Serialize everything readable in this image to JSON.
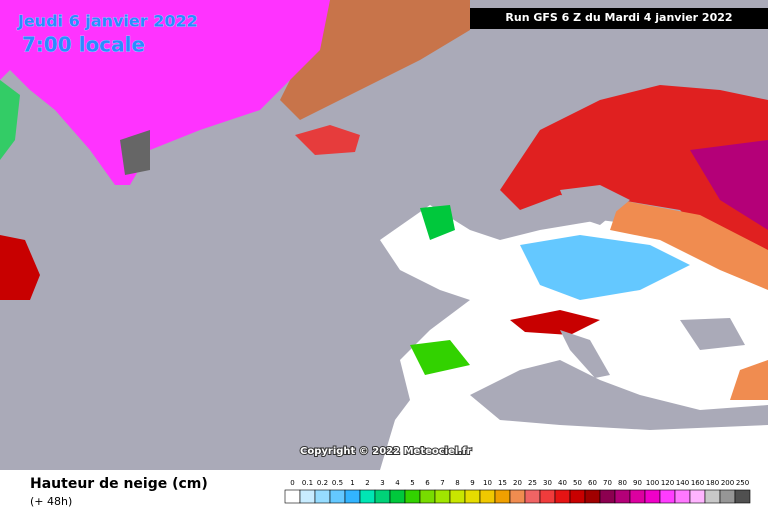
{
  "header": {
    "date": "Jeudi 6 janvier 2022",
    "time": "7:00 locale",
    "run": "Run GFS 6 Z du Mardi 4 janvier 2022"
  },
  "copyright": "Copyright © 2022 Meteociel.fr",
  "legend": {
    "title": "Hauteur de neige (cm)",
    "subtitle": "(+ 48h)",
    "items": [
      {
        "label": "0",
        "color": "#ffffff"
      },
      {
        "label": "0.1",
        "color": "#c8ecff"
      },
      {
        "label": "0.2",
        "color": "#96dcff"
      },
      {
        "label": "0.5",
        "color": "#64c8ff"
      },
      {
        "label": "1",
        "color": "#32b4ff"
      },
      {
        "label": "2",
        "color": "#00e6b4"
      },
      {
        "label": "3",
        "color": "#00d278"
      },
      {
        "label": "4",
        "color": "#00c83c"
      },
      {
        "label": "5",
        "color": "#32d200"
      },
      {
        "label": "6",
        "color": "#78dc00"
      },
      {
        "label": "7",
        "color": "#a0e600"
      },
      {
        "label": "8",
        "color": "#c8e600"
      },
      {
        "label": "9",
        "color": "#e6dc00"
      },
      {
        "label": "10",
        "color": "#f0c800"
      },
      {
        "label": "15",
        "color": "#f0a000"
      },
      {
        "label": "20",
        "color": "#f08c50"
      },
      {
        "label": "25",
        "color": "#f06464"
      },
      {
        "label": "30",
        "color": "#f03c3c"
      },
      {
        "label": "40",
        "color": "#e61414"
      },
      {
        "label": "50",
        "color": "#c80000"
      },
      {
        "label": "60",
        "color": "#a00000"
      },
      {
        "label": "70",
        "color": "#8c0050"
      },
      {
        "label": "80",
        "color": "#b40078"
      },
      {
        "label": "90",
        "color": "#dc00a0"
      },
      {
        "label": "100",
        "color": "#f000c8"
      },
      {
        "label": "120",
        "color": "#ff3cff"
      },
      {
        "label": "140",
        "color": "#ff78ff"
      },
      {
        "label": "160",
        "color": "#ffb4ff"
      },
      {
        "label": "180",
        "color": "#c8c8c8"
      },
      {
        "label": "200",
        "color": "#969696"
      },
      {
        "label": "250",
        "color": "#505050"
      }
    ]
  }
}
